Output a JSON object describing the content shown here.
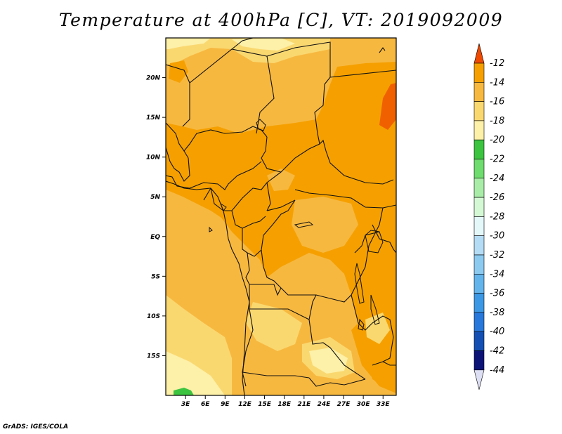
{
  "title": "Temperature at 400hPa [C], VT: 2019092009",
  "credit": "GrADS: IGES/COLA",
  "map": {
    "lon_range": [
      0,
      35
    ],
    "lat_range": [
      -20,
      25
    ],
    "lon_ticks": [
      {
        "value": 3,
        "label": "3E"
      },
      {
        "value": 6,
        "label": "6E"
      },
      {
        "value": 9,
        "label": "9E"
      },
      {
        "value": 12,
        "label": "12E"
      },
      {
        "value": 15,
        "label": "15E"
      },
      {
        "value": 18,
        "label": "18E"
      },
      {
        "value": 21,
        "label": "21E"
      },
      {
        "value": 24,
        "label": "24E"
      },
      {
        "value": 27,
        "label": "27E"
      },
      {
        "value": 30,
        "label": "30E"
      },
      {
        "value": 33,
        "label": "33E"
      }
    ],
    "lat_ticks": [
      {
        "value": 20,
        "label": "20N"
      },
      {
        "value": 15,
        "label": "15N"
      },
      {
        "value": 10,
        "label": "10N"
      },
      {
        "value": 5,
        "label": "5N"
      },
      {
        "value": 0,
        "label": "EQ"
      },
      {
        "value": -5,
        "label": "5S"
      },
      {
        "value": -10,
        "label": "10S"
      },
      {
        "value": -15,
        "label": "15S"
      }
    ],
    "colors": {
      "c_12_14": "#f06000",
      "c_14_16": "#f5a000",
      "c_16_18": "#f7b840",
      "c_18_20": "#fad870",
      "c_20_22": "#fdf0a8",
      "c_22_24": "#3cc440"
    }
  },
  "colorbar": {
    "levels": [
      "-12",
      "-14",
      "-16",
      "-18",
      "-20",
      "-22",
      "-24",
      "-26",
      "-28",
      "-30",
      "-32",
      "-34",
      "-36",
      "-38",
      "-40",
      "-42",
      "-44"
    ],
    "colors": [
      "#fa6400",
      "#f5a000",
      "#f7b840",
      "#fad870",
      "#fdf0a8",
      "#3cc440",
      "#6edc6e",
      "#a8eca8",
      "#d4f8d4",
      "#e4f8fa",
      "#b4dcf4",
      "#8ccaf0",
      "#64b4ec",
      "#3c98e4",
      "#2878dc",
      "#1450b4",
      "#0c1478"
    ],
    "top_color": "#f04a00",
    "bottom_color": "#dde0f4"
  }
}
